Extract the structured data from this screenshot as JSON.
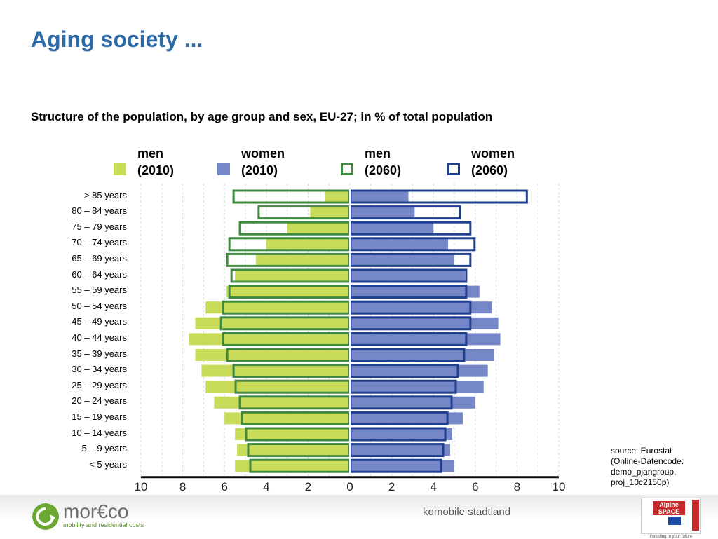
{
  "page": {
    "title": "Aging society ...",
    "subtitle": "Structure of the population,  by age group and sex, EU-27; in % of total population",
    "source_lines": [
      "source: Eurostat",
      "(Online-Datencode:",
      "demo_pjangroup,",
      "proj_10c2150p)"
    ],
    "footer_center": "komobile stadtland",
    "logo": {
      "name": "mor€co",
      "tagline": "mobility and residential costs",
      "icon": "recycle-arrow-icon"
    },
    "badge": {
      "label": "Alpine SPACE",
      "caption": "investing in your future",
      "side_text": "COOPERATION"
    }
  },
  "legend": [
    {
      "line1": "men",
      "line2": "(2010)",
      "style": "filled",
      "color": "#c8dc5a"
    },
    {
      "line1": "women",
      "line2": "(2010)",
      "style": "filled",
      "color": "#7587c7"
    },
    {
      "line1": "men",
      "line2": "(2060)",
      "style": "outline",
      "color": "#3f8a3f"
    },
    {
      "line1": "women",
      "line2": "(2060)",
      "style": "outline",
      "color": "#1f3f8f"
    }
  ],
  "chart_data": {
    "type": "bar",
    "orientation": "horizontal-pyramid",
    "categories": [
      "> 85 years",
      "80 – 84 years",
      "75 – 79 years",
      "70 – 74 years",
      "65 – 69 years",
      "60 – 64 years",
      "55 – 59 years",
      "50 – 54 years",
      "45 – 49 years",
      "40 – 44 years",
      "35 – 39 years",
      "30 – 34 years",
      "25 – 29 years",
      "20 – 24 years",
      "15 – 19 years",
      "10 – 14 years",
      "5 – 9 years",
      "<  5 years"
    ],
    "series": [
      {
        "name": "men (2010)",
        "side": "left",
        "style": "filled",
        "color": "#c8dc5a",
        "values": [
          1.2,
          1.9,
          3.0,
          4.0,
          4.5,
          5.5,
          5.9,
          6.9,
          7.4,
          7.7,
          7.4,
          7.1,
          6.9,
          6.5,
          6.0,
          5.5,
          5.4,
          5.5
        ]
      },
      {
        "name": "women (2010)",
        "side": "right",
        "style": "filled",
        "color": "#7587c7",
        "values": [
          2.8,
          3.1,
          4.0,
          4.7,
          5.0,
          5.5,
          6.2,
          6.8,
          7.1,
          7.2,
          6.9,
          6.6,
          6.4,
          6.0,
          5.4,
          4.9,
          4.8,
          5.0
        ]
      },
      {
        "name": "men (2060)",
        "side": "left",
        "style": "outline",
        "color": "#3f8a3f",
        "values": [
          5.6,
          4.4,
          5.3,
          5.8,
          5.9,
          5.7,
          5.8,
          6.1,
          6.2,
          6.1,
          5.9,
          5.6,
          5.5,
          5.3,
          5.2,
          5.0,
          4.9,
          4.8
        ]
      },
      {
        "name": "women (2060)",
        "side": "right",
        "style": "outline",
        "color": "#1f3f8f",
        "values": [
          8.5,
          5.3,
          5.8,
          6.0,
          5.8,
          5.6,
          5.6,
          5.8,
          5.8,
          5.6,
          5.5,
          5.2,
          5.1,
          4.9,
          4.7,
          4.6,
          4.5,
          4.4
        ]
      }
    ],
    "xticks_left": [
      "10",
      "8",
      "6",
      "4",
      "2"
    ],
    "xtick_center": "0",
    "xticks_right": [
      "2",
      "4",
      "6",
      "8",
      "10"
    ],
    "xlim": [
      -10,
      10
    ],
    "grid": true,
    "legend_position": "top"
  }
}
